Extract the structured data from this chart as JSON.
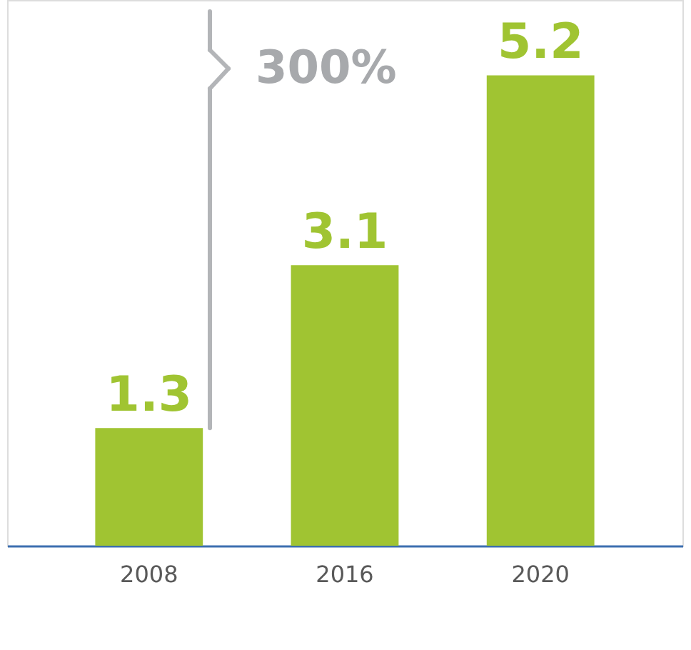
{
  "chart_data": {
    "type": "bar",
    "categories": [
      "2008",
      "2016",
      "2020"
    ],
    "values": [
      1.3,
      3.1,
      5.2
    ],
    "color": "#a0c432",
    "data_labels": true,
    "grid": false,
    "tick_labels": "x",
    "annotations": [
      "300%"
    ]
  }
}
